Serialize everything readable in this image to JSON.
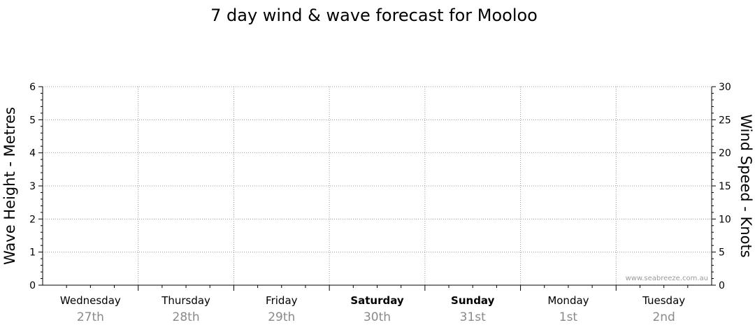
{
  "chart_data": {
    "type": "line",
    "title": "7 day wind & wave forecast for Mooloo",
    "ylabel_left": "Wave Height - Metres",
    "ylabel_right": "Wind Speed - Knots",
    "ylim_left": [
      0,
      6
    ],
    "ylim_right": [
      0,
      30
    ],
    "yticks_left": [
      "0",
      "1",
      "2",
      "3",
      "4",
      "5",
      "6"
    ],
    "yticks_right": [
      "0",
      "5",
      "10",
      "15",
      "20",
      "25",
      "30"
    ],
    "grid": true,
    "days": [
      {
        "name": "Wednesday",
        "date": "27th",
        "bold": false
      },
      {
        "name": "Thursday",
        "date": "28th",
        "bold": false
      },
      {
        "name": "Friday",
        "date": "29th",
        "bold": false
      },
      {
        "name": "Saturday",
        "date": "30th",
        "bold": true
      },
      {
        "name": "Sunday",
        "date": "31st",
        "bold": true
      },
      {
        "name": "Monday",
        "date": "1st",
        "bold": false
      },
      {
        "name": "Tuesday",
        "date": "2nd",
        "bold": false
      }
    ],
    "series": []
  },
  "watermark": "www.seabreeze.com.au"
}
